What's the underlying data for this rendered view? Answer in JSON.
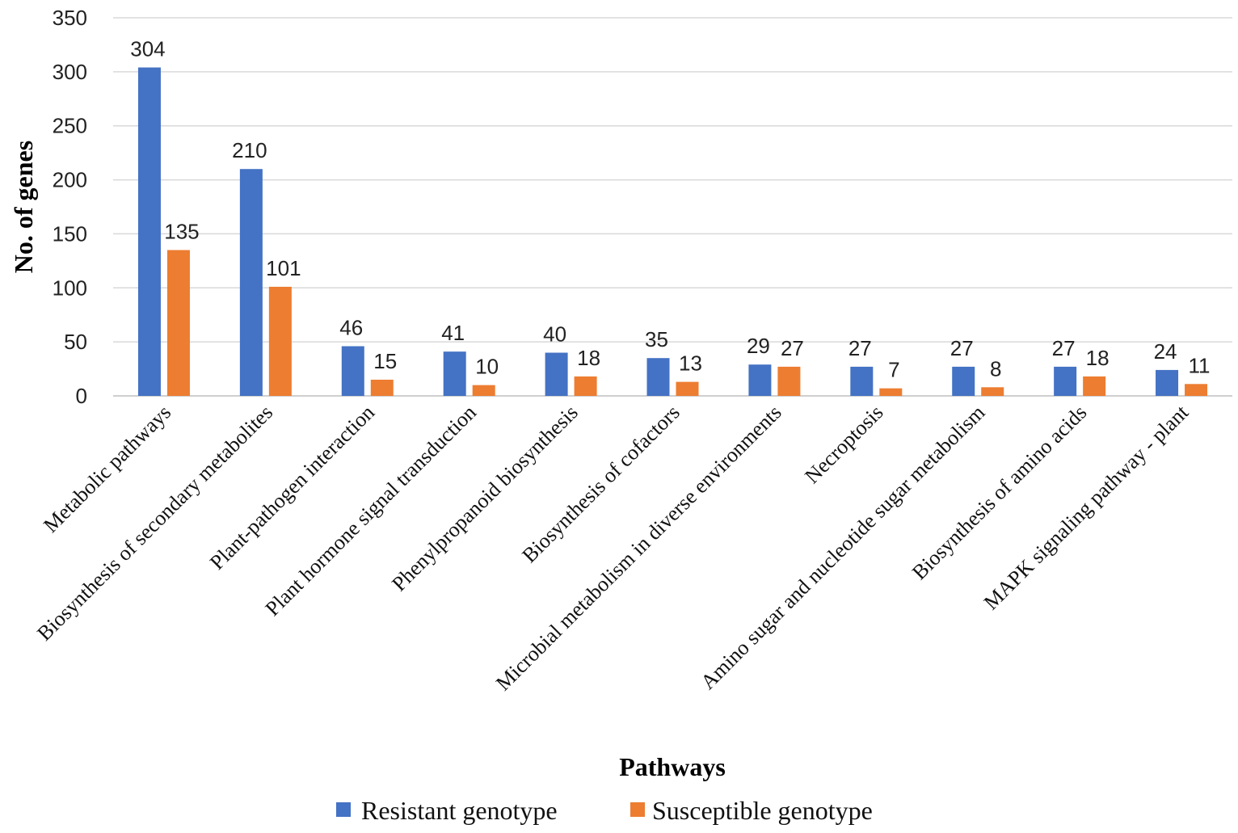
{
  "chart_data": {
    "type": "bar",
    "title": "",
    "xlabel": "Pathways",
    "ylabel": "No. of genes",
    "ylim": [
      0,
      350
    ],
    "yticks": [
      "0",
      "50",
      "100",
      "150",
      "200",
      "250",
      "300",
      "350"
    ],
    "grid": true,
    "legend_position": "bottom",
    "categories": [
      "Metabolic pathways",
      "Biosynthesis of secondary metabolites",
      "Plant-pathogen interaction",
      "Plant hormone signal transduction",
      "Phenylpropanoid biosynthesis",
      "Biosynthesis of cofactors",
      "Microbial metabolism in diverse environments",
      "Necroptosis",
      "Amino sugar and nucleotide sugar metabolism",
      "Biosynthesis of amino acids",
      "MAPK signaling pathway - plant"
    ],
    "series": [
      {
        "name": "Resistant genotype",
        "color": "#4472C4",
        "values": [
          304,
          210,
          46,
          41,
          40,
          35,
          29,
          27,
          27,
          27,
          24
        ]
      },
      {
        "name": "Susceptible genotype",
        "color": "#ED7D31",
        "values": [
          135,
          101,
          15,
          10,
          18,
          13,
          27,
          7,
          8,
          18,
          11
        ]
      }
    ]
  }
}
